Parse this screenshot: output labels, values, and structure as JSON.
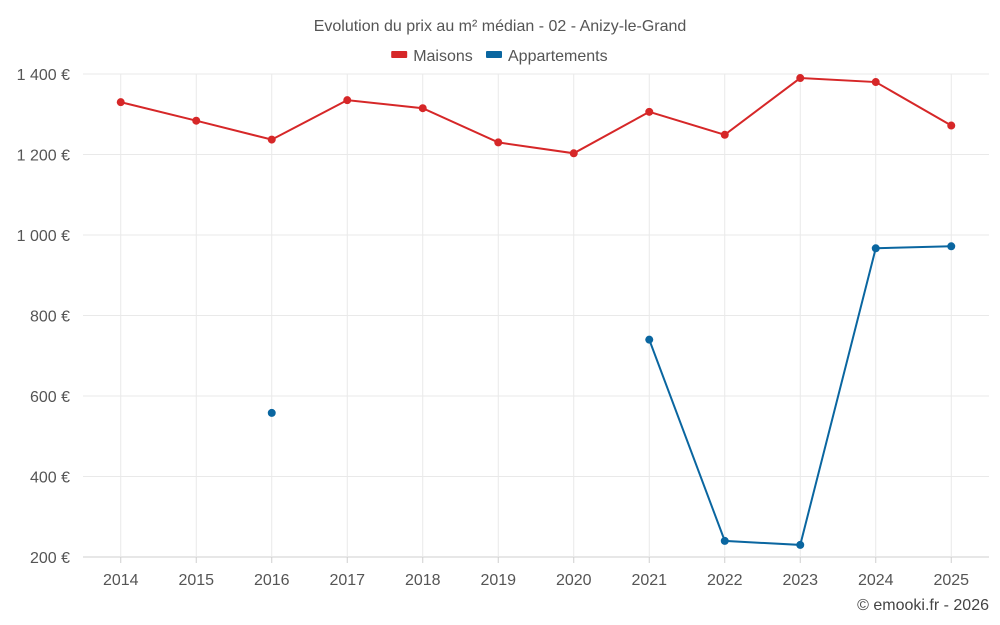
{
  "chart_data": {
    "type": "line",
    "title": "Evolution du prix au m² médian - 02 - Anizy-le-Grand",
    "categories": [
      "2014",
      "2015",
      "2016",
      "2017",
      "2018",
      "2019",
      "2020",
      "2021",
      "2022",
      "2023",
      "2024",
      "2025"
    ],
    "series": [
      {
        "name": "Maisons",
        "color": "#d62728",
        "values": [
          1330,
          1284,
          1237,
          1335,
          1315,
          1230,
          1203,
          1306,
          1249,
          1390,
          1380,
          1272
        ]
      },
      {
        "name": "Appartements",
        "color": "#0a66a0",
        "values": [
          null,
          null,
          558,
          null,
          null,
          null,
          null,
          740,
          240,
          230,
          967,
          972
        ]
      }
    ],
    "ylim": [
      200,
      1400
    ],
    "yticks": [
      200,
      400,
      600,
      800,
      1000,
      1200,
      1400
    ],
    "ytick_labels": [
      "200 €",
      "400 €",
      "600 €",
      "800 €",
      "1 000 €",
      "1 200 €",
      "1 400 €"
    ],
    "xlabel": "",
    "ylabel": "",
    "grid": true,
    "legend": "top-center",
    "credit": "© emooki.fr - 2026"
  }
}
